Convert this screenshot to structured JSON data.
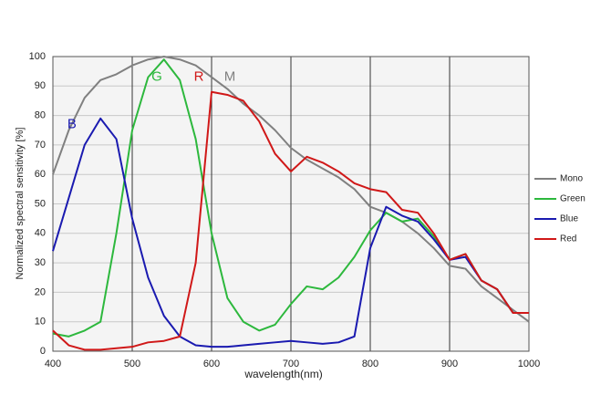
{
  "chart_data": {
    "type": "line",
    "xlabel": "wavelength(nm)",
    "ylabel": "Normalized spectral sensitivity [%]",
    "x": [
      400,
      420,
      440,
      460,
      480,
      500,
      520,
      540,
      560,
      580,
      600,
      620,
      640,
      660,
      680,
      700,
      720,
      740,
      760,
      780,
      800,
      820,
      840,
      860,
      880,
      900,
      920,
      940,
      960,
      980,
      1000
    ],
    "series": [
      {
        "name": "Mono",
        "color": "#808080",
        "values": [
          60,
          75,
          86,
          92,
          94,
          97,
          99,
          100,
          99,
          97,
          93,
          89,
          84,
          80,
          75,
          69,
          65,
          62,
          59,
          55,
          49,
          47,
          44,
          40,
          35,
          29,
          28,
          22,
          18,
          14,
          10
        ]
      },
      {
        "name": "Green",
        "color": "#2db83d",
        "values": [
          6,
          5,
          7,
          10,
          40,
          75,
          93,
          99,
          92,
          72,
          40,
          18,
          10,
          7,
          9,
          16,
          22,
          21,
          25,
          32,
          41,
          47,
          44,
          45,
          39,
          31,
          33,
          24,
          21,
          13,
          13
        ]
      },
      {
        "name": "Blue",
        "color": "#1a1ab0",
        "values": [
          34,
          52,
          70,
          79,
          72,
          45,
          25,
          12,
          5,
          2,
          1.5,
          1.5,
          2,
          2.5,
          3,
          3.5,
          3,
          2.5,
          3,
          5,
          35,
          49,
          46,
          44,
          38,
          31,
          32,
          24,
          21,
          13,
          13
        ]
      },
      {
        "name": "Red",
        "color": "#d01818",
        "values": [
          7,
          2,
          0.5,
          0.5,
          1,
          1.5,
          3,
          3.5,
          5,
          30,
          88,
          87,
          85,
          78,
          67,
          61,
          66,
          64,
          61,
          57,
          55,
          54,
          48,
          47,
          40,
          31,
          33,
          24,
          21,
          13,
          13
        ]
      }
    ],
    "annotations": [
      {
        "text": "B",
        "x": 424,
        "y": 77,
        "color": "#1a1ab0"
      },
      {
        "text": "G",
        "x": 531,
        "y": 93,
        "color": "#2db83d"
      },
      {
        "text": "R",
        "x": 584,
        "y": 93,
        "color": "#d01818"
      },
      {
        "text": "M",
        "x": 623,
        "y": 93,
        "color": "#808080"
      }
    ],
    "xlim": [
      400,
      1000
    ],
    "xticks": [
      400,
      500,
      600,
      700,
      800,
      900,
      1000
    ],
    "ylim": [
      0,
      100
    ],
    "yticks": [
      0,
      10,
      20,
      30,
      40,
      50,
      60,
      70,
      80,
      90,
      100
    ],
    "grid": true,
    "legend": "right"
  }
}
